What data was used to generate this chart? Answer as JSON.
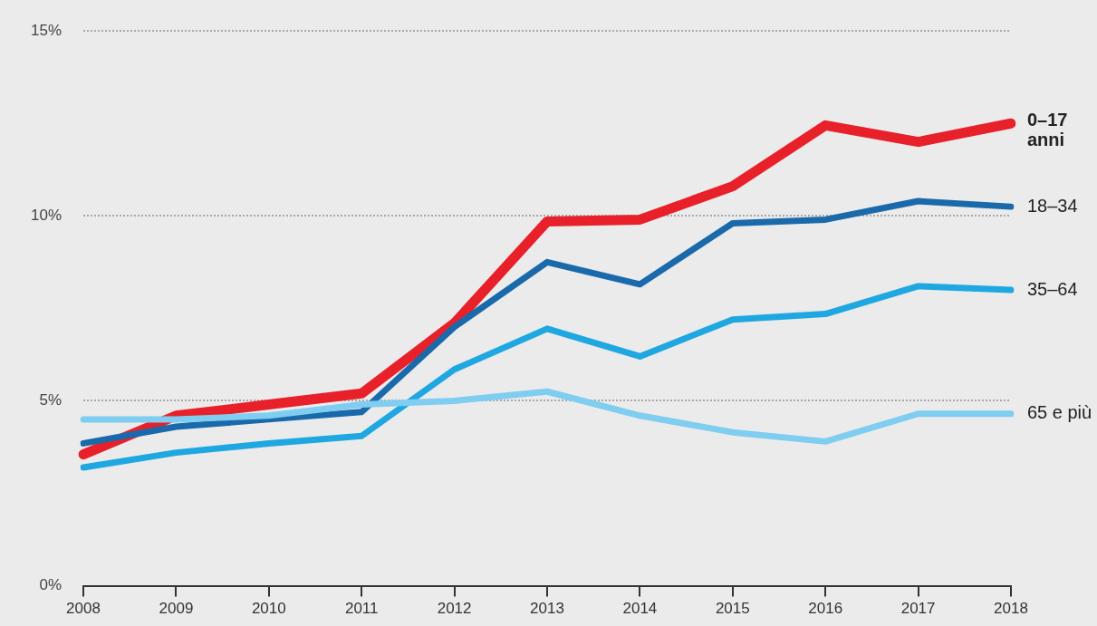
{
  "chart_data": {
    "type": "line",
    "categories": [
      "2008",
      "2009",
      "2010",
      "2011",
      "2012",
      "2013",
      "2014",
      "2015",
      "2016",
      "2017",
      "2018"
    ],
    "series": [
      {
        "name": "65 e più",
        "color": "#7fcdf0",
        "values": [
          4.5,
          4.5,
          4.6,
          4.9,
          5.0,
          5.25,
          4.6,
          4.15,
          3.9,
          4.65,
          4.65
        ]
      },
      {
        "name": "35–64",
        "color": "#1ea7e1",
        "values": [
          3.2,
          3.6,
          3.85,
          4.05,
          5.85,
          6.95,
          6.2,
          7.2,
          7.35,
          8.1,
          8.0
        ]
      },
      {
        "name": "18–34",
        "color": "#1a6aab",
        "values": [
          3.85,
          4.3,
          4.5,
          4.7,
          7.0,
          8.75,
          8.15,
          9.8,
          9.9,
          10.4,
          10.25
        ]
      },
      {
        "name": "0–17 anni",
        "color": "#e8202a",
        "values": [
          3.55,
          4.6,
          4.9,
          5.2,
          7.1,
          9.85,
          9.9,
          10.8,
          12.45,
          12.0,
          12.5
        ]
      }
    ],
    "ylim": [
      0,
      15
    ],
    "yticks": [
      {
        "value": 0,
        "label": "0%"
      },
      {
        "value": 5,
        "label": "5%"
      },
      {
        "value": 10,
        "label": "10%"
      },
      {
        "value": 15,
        "label": "15%"
      }
    ],
    "grid": "y",
    "legend": false,
    "marker": "none",
    "line_style": "solid"
  }
}
